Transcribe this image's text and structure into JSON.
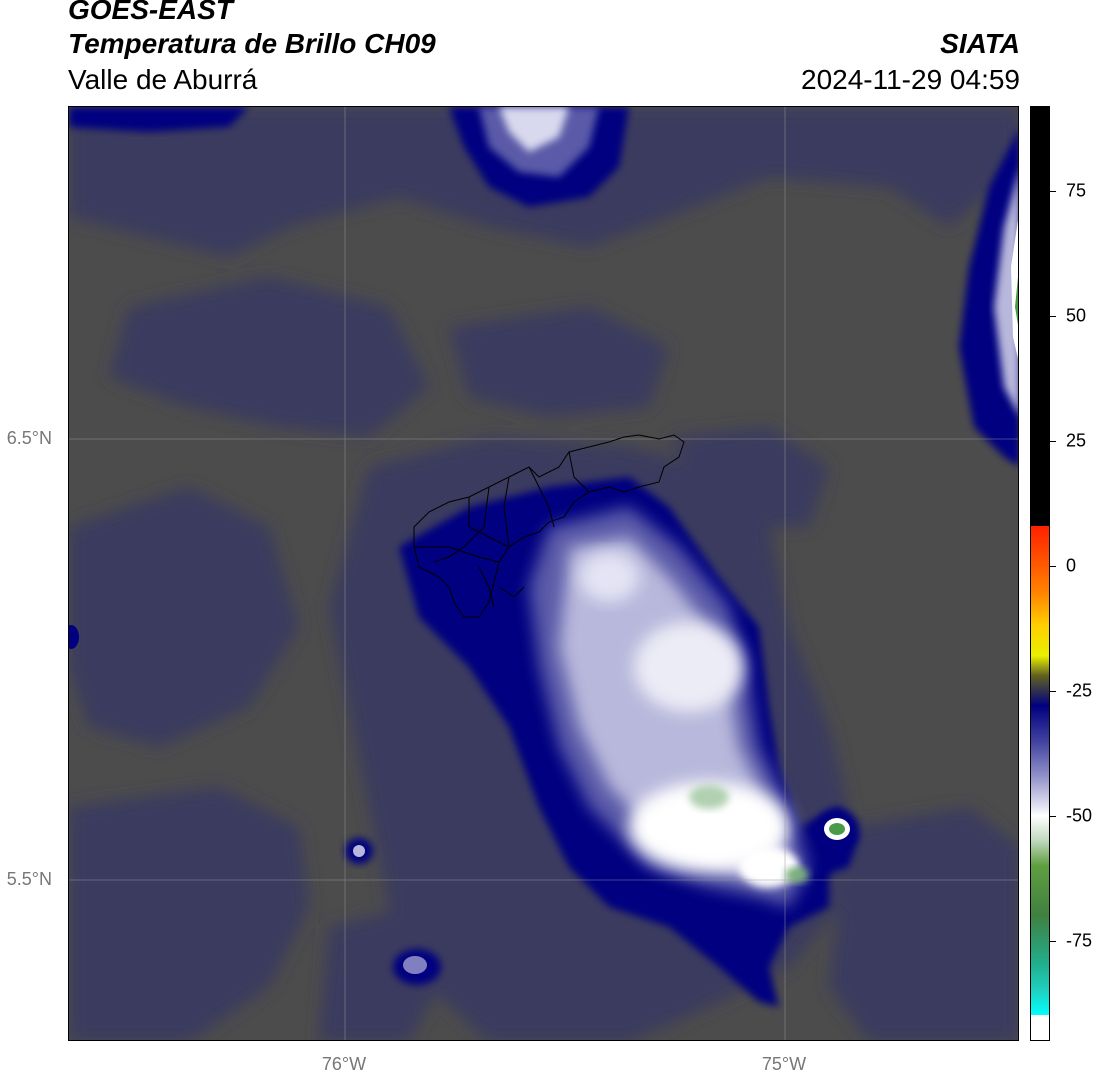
{
  "header": {
    "title_line1": "GOES-EAST",
    "title_line2": "Temperatura de Brillo CH09",
    "subtitle": "Valle de Aburrá",
    "organization": "SIATA",
    "datetime": "2024-11-29 04:59"
  },
  "map": {
    "type": "brightness-temperature-map",
    "latitude_labels": [
      "6.5°N",
      "5.5°N"
    ],
    "longitude_labels": [
      "76°W",
      "75°W"
    ],
    "colors": {
      "background": "#4c4c4c",
      "mid_gray_blue": "#3a3a5e",
      "navy": "#000080",
      "lavender": "#b8b8dc",
      "white": "#ffffff",
      "green": "#4a9a4a"
    }
  },
  "colorbar": {
    "ticks": [
      {
        "value": 75,
        "label": "75"
      },
      {
        "value": 50,
        "label": "50"
      },
      {
        "value": 25,
        "label": "25"
      },
      {
        "value": 0,
        "label": "0"
      },
      {
        "value": -25,
        "label": "-25"
      },
      {
        "value": -50,
        "label": "-50"
      },
      {
        "value": -75,
        "label": "-75"
      }
    ],
    "range": [
      -95,
      92
    ]
  }
}
